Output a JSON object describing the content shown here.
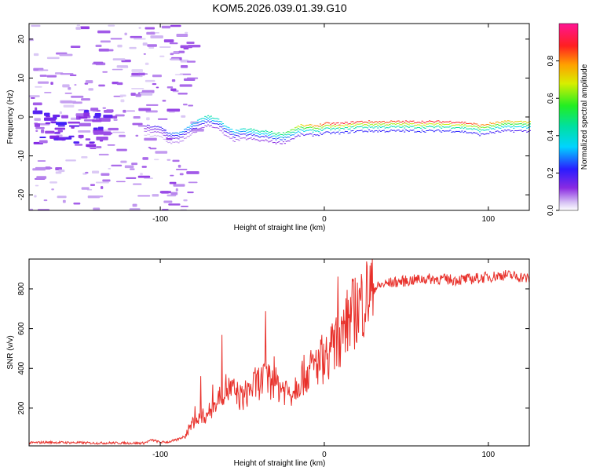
{
  "title": "KOM5.2026.039.01.39.G10",
  "colors": {
    "snr_line": "#e8302a",
    "axis": "#000000",
    "background": "#ffffff"
  },
  "chart_data": [
    {
      "type": "heatmap",
      "title": "KOM5.2026.039.01.39.G10",
      "xlabel": "Height of straight line (km)",
      "ylabel": "Frequency (Hz)",
      "xlim": [
        -180,
        125
      ],
      "ylim": [
        -24,
        24
      ],
      "xticks": [
        -100,
        0,
        100
      ],
      "xtick_labels": [
        "-100",
        "0",
        "100"
      ],
      "yticks": [
        -20,
        -10,
        0,
        10,
        20
      ],
      "ytick_labels": [
        "-20",
        "-10",
        "0",
        "10",
        "20"
      ],
      "colorbar": {
        "label": "Normalized spectral amplitude",
        "range": [
          0,
          1
        ],
        "ticks": [
          0.0,
          0.2,
          0.4,
          0.6,
          0.8
        ],
        "tick_labels": [
          "0.0",
          "0.2",
          "0.4",
          "0.6",
          "0.8"
        ]
      },
      "ridge": {
        "x": [
          -110,
          -100,
          -95,
          -90,
          -85,
          -80,
          -75,
          -70,
          -65,
          -60,
          -55,
          -50,
          -45,
          -40,
          -35,
          -30,
          -25,
          -20,
          -15,
          -10,
          -5,
          0,
          10,
          20,
          30,
          40,
          50,
          60,
          70,
          80,
          90,
          95,
          100,
          110,
          125
        ],
        "y": [
          -1.5,
          -2,
          -3.5,
          -3.5,
          -2.5,
          -1,
          0.5,
          1,
          0,
          -2,
          -3,
          -2.5,
          -2.5,
          -3,
          -3,
          -3.5,
          -3.5,
          -2.5,
          -1.5,
          -1.5,
          -1.5,
          -1,
          -1,
          -0.5,
          -0.5,
          -0.5,
          -0.5,
          -0.5,
          -0.5,
          -0.5,
          -1,
          -1.5,
          -1,
          -0.5,
          -0.5
        ],
        "amplitude": [
          0.15,
          0.2,
          0.25,
          0.3,
          0.3,
          0.35,
          0.4,
          0.45,
          0.4,
          0.35,
          0.35,
          0.4,
          0.45,
          0.45,
          0.45,
          0.5,
          0.5,
          0.6,
          0.7,
          0.75,
          0.8,
          0.85,
          0.9,
          0.88,
          0.85,
          0.85,
          0.88,
          0.9,
          0.88,
          0.9,
          0.85,
          0.8,
          0.8,
          0.75,
          0.7
        ]
      }
    },
    {
      "type": "line",
      "xlabel": "Height of straight line (km)",
      "ylabel": "SNR (v/v)",
      "xlim": [
        -180,
        125
      ],
      "ylim": [
        10,
        950
      ],
      "xticks": [
        -100,
        0,
        100
      ],
      "xtick_labels": [
        "-100",
        "0",
        "100"
      ],
      "yticks": [
        200,
        400,
        600,
        800
      ],
      "ytick_labels": [
        "200",
        "400",
        "600",
        "800"
      ],
      "series": [
        {
          "name": "SNR",
          "x": [
            -180,
            -170,
            -160,
            -150,
            -140,
            -130,
            -120,
            -110,
            -105,
            -100,
            -95,
            -90,
            -85,
            -80,
            -75,
            -70,
            -65,
            -60,
            -55,
            -50,
            -45,
            -40,
            -35,
            -30,
            -25,
            -20,
            -15,
            -10,
            -5,
            0,
            5,
            10,
            15,
            20,
            25,
            30,
            35,
            40,
            50,
            60,
            70,
            80,
            90,
            100,
            110,
            120,
            125
          ],
          "values": [
            25,
            28,
            27,
            26,
            24,
            25,
            24,
            24,
            40,
            28,
            30,
            40,
            60,
            130,
            150,
            180,
            240,
            300,
            280,
            250,
            300,
            330,
            350,
            320,
            300,
            280,
            350,
            380,
            420,
            450,
            500,
            560,
            650,
            700,
            760,
            800,
            820,
            830,
            840,
            850,
            850,
            845,
            850,
            860,
            870,
            860,
            850
          ]
        }
      ]
    }
  ]
}
